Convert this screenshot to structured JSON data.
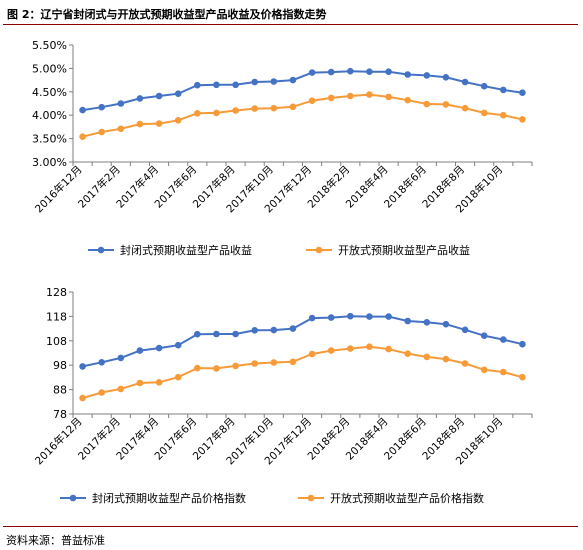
{
  "header": {
    "title": "图 2：辽宁省封闭式与开放式预期收益型产品收益及价格指数走势"
  },
  "footer": {
    "source": "资料来源：普益标准"
  },
  "colors": {
    "series1": "#4472c4",
    "series2": "#f79a38",
    "accent_rule": "#8b0000",
    "axis": "#7f7f7f"
  },
  "chart_data": [
    {
      "type": "line",
      "title": "",
      "xlabel": "",
      "ylabel": "",
      "ylim": [
        0.03,
        0.055
      ],
      "y_ticks": [
        "3.00%",
        "3.50%",
        "4.00%",
        "4.50%",
        "5.00%",
        "5.50%"
      ],
      "grid": false,
      "legend_position": "bottom",
      "categories": [
        "2016年12月",
        "2017年1月",
        "2017年2月",
        "2017年3月",
        "2017年4月",
        "2017年5月",
        "2017年6月",
        "2017年7月",
        "2017年8月",
        "2017年9月",
        "2017年10月",
        "2017年11月",
        "2017年12月",
        "2018年1月",
        "2018年2月",
        "2018年3月",
        "2018年4月",
        "2018年5月",
        "2018年6月",
        "2018年7月",
        "2018年8月",
        "2018年9月",
        "2018年10月",
        "2018年11月"
      ],
      "tick_labels": [
        "2016年12月",
        "2017年2月",
        "2017年4月",
        "2017年6月",
        "2017年8月",
        "2017年10月",
        "2017年12月",
        "2018年2月",
        "2018年4月",
        "2018年6月",
        "2018年8月",
        "2018年10月"
      ],
      "series": [
        {
          "name": "封闭式预期收益型产品收益",
          "values": [
            0.0411,
            0.0417,
            0.0425,
            0.0436,
            0.0441,
            0.0446,
            0.0464,
            0.0465,
            0.0465,
            0.0471,
            0.0472,
            0.0475,
            0.0491,
            0.0492,
            0.0494,
            0.0493,
            0.0493,
            0.0487,
            0.0485,
            0.0481,
            0.0471,
            0.0462,
            0.0454,
            0.0448
          ]
        },
        {
          "name": "开放式预期收益型产品收益",
          "values": [
            0.0354,
            0.0364,
            0.0371,
            0.0381,
            0.0382,
            0.0389,
            0.0404,
            0.0405,
            0.041,
            0.0414,
            0.0415,
            0.0418,
            0.0431,
            0.0437,
            0.0441,
            0.0444,
            0.0439,
            0.0432,
            0.0424,
            0.0423,
            0.0415,
            0.0405,
            0.04,
            0.0391
          ]
        }
      ]
    },
    {
      "type": "line",
      "title": "",
      "xlabel": "",
      "ylabel": "",
      "ylim": [
        78,
        128
      ],
      "y_ticks": [
        "78",
        "88",
        "98",
        "108",
        "118",
        "128"
      ],
      "grid": false,
      "legend_position": "bottom",
      "categories": [
        "2016年12月",
        "2017年1月",
        "2017年2月",
        "2017年3月",
        "2017年4月",
        "2017年5月",
        "2017年6月",
        "2017年7月",
        "2017年8月",
        "2017年9月",
        "2017年10月",
        "2017年11月",
        "2017年12月",
        "2018年1月",
        "2018年2月",
        "2018年3月",
        "2018年4月",
        "2018年5月",
        "2018年6月",
        "2018年7月",
        "2018年8月",
        "2018年9月",
        "2018年10月",
        "2018年11月"
      ],
      "tick_labels": [
        "2016年12月",
        "2017年2月",
        "2017年4月",
        "2017年6月",
        "2017年8月",
        "2017年10月",
        "2017年12月",
        "2018年2月",
        "2018年4月",
        "2018年6月",
        "2018年8月",
        "2018年10月"
      ],
      "series": [
        {
          "name": "封闭式预期收益型产品价格指数",
          "values": [
            97.5,
            99.2,
            101.0,
            104.0,
            105.0,
            106.2,
            110.7,
            110.8,
            110.8,
            112.3,
            112.4,
            113.0,
            117.3,
            117.5,
            118.1,
            117.9,
            117.9,
            116.1,
            115.6,
            114.8,
            112.5,
            110.1,
            108.5,
            106.6
          ]
        },
        {
          "name": "开放式预期收益型产品价格指数",
          "values": [
            84.5,
            86.8,
            88.3,
            90.7,
            91.0,
            93.1,
            96.8,
            96.7,
            97.7,
            98.7,
            99.1,
            99.4,
            102.6,
            104.0,
            104.8,
            105.6,
            104.6,
            102.7,
            101.4,
            100.5,
            98.7,
            96.1,
            95.2,
            93.1
          ]
        }
      ]
    }
  ]
}
